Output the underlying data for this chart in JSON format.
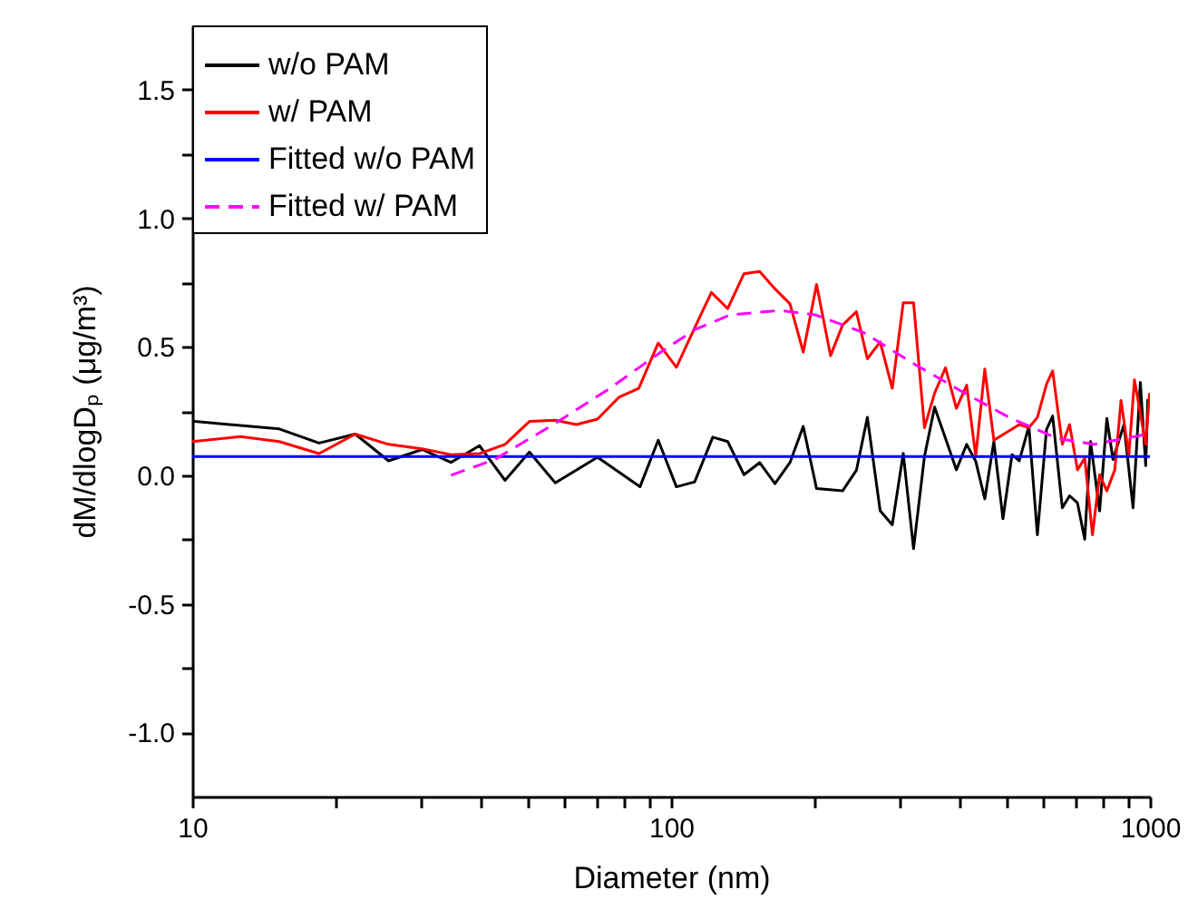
{
  "chart_data": {
    "type": "line",
    "xlabel": "Diameter (nm)",
    "ylabel": "dM/dlogDₚ (μg/m³)",
    "log": "x",
    "xlim": [
      10,
      1000
    ],
    "xticks": [
      10,
      {
        "value": 20,
        "label": null
      },
      {
        "value": 30,
        "label": null
      },
      {
        "value": 40,
        "label": null
      },
      {
        "value": 50,
        "label": null
      },
      {
        "value": 60,
        "label": null
      },
      {
        "value": 70,
        "label": null
      },
      {
        "value": 80,
        "label": null
      },
      {
        "value": 90,
        "label": null
      },
      100,
      {
        "value": 200,
        "label": null
      },
      {
        "value": 300,
        "label": null
      },
      {
        "value": 400,
        "label": null
      },
      {
        "value": 500,
        "label": null
      },
      {
        "value": 600,
        "label": null
      },
      {
        "value": 700,
        "label": null
      },
      {
        "value": 800,
        "label": null
      },
      {
        "value": 900,
        "label": null
      },
      1000
    ],
    "ylim": [
      -1.25,
      1.75
    ],
    "yticks": [
      {
        "value": -1,
        "label": "-1.0"
      },
      {
        "value": -0.75,
        "label": null
      },
      -0.5,
      {
        "value": -0.25,
        "label": null
      },
      {
        "value": 0,
        "label": "0.0"
      },
      {
        "value": 0.25,
        "label": null
      },
      0.5,
      {
        "value": 0.75,
        "label": null
      },
      {
        "value": 1,
        "label": "1.0"
      },
      {
        "value": 1.25,
        "label": null
      },
      1.5
    ],
    "grid": false,
    "legend": "top left",
    "marker": "none",
    "series": [
      {
        "name": "w/o PAM",
        "color": "#000000",
        "line_style": "solid",
        "x": [
          10,
          15.2,
          18.4,
          21.9,
          25.7,
          30.2,
          34.7,
          39.8,
          45,
          50.6,
          57.3,
          70.2,
          86.1,
          94,
          102.6,
          112,
          122.2,
          131.3,
          142,
          153.1,
          164.8,
          177.1,
          188.8,
          201.3,
          228.1,
          243.8,
          257,
          273.3,
          289.7,
          305.4,
          320.9,
          338.2,
          355.1,
          374.2,
          394.3,
          414.3,
          432.8,
          452,
          472.2,
          493.3,
          515.3,
          533.6,
          558.8,
          582.1,
          608.2,
          626.4,
          656.3,
          679.6,
          705.9,
          730.9,
          751.6,
          785.2,
          813,
          837.3,
          882.7,
          922.2,
          955,
          980,
          990
        ],
        "values": [
          0.21,
          0.18,
          0.125,
          0.16,
          0.056,
          0.1,
          0.05,
          0.115,
          -0.02,
          0.09,
          -0.03,
          0.07,
          -0.045,
          0.136,
          -0.045,
          -0.026,
          0.148,
          0.131,
          0.002,
          0.049,
          -0.033,
          0.049,
          0.19,
          -0.052,
          -0.061,
          0.019,
          0.225,
          -0.138,
          -0.193,
          0.085,
          -0.286,
          0.073,
          0.265,
          0.143,
          0.021,
          0.12,
          0.054,
          -0.092,
          0.131,
          -0.169,
          0.08,
          0.056,
          0.19,
          -0.232,
          0.178,
          0.23,
          -0.127,
          -0.08,
          -0.108,
          -0.249,
          0.131,
          -0.139,
          0.221,
          0.061,
          0.197,
          -0.127,
          0.361,
          0.037,
          0.296
        ]
      },
      {
        "name": "w/ PAM",
        "color": "#ff0000",
        "line_style": "solid",
        "x": [
          10,
          12.6,
          15.2,
          18.4,
          21.9,
          25.7,
          30.2,
          34.7,
          39.8,
          45,
          50.6,
          57.3,
          63.4,
          70.2,
          77.8,
          85.6,
          94,
          102.6,
          112,
          121.4,
          131.3,
          142,
          153.1,
          164.8,
          177.1,
          188.8,
          201.3,
          215.3,
          228.1,
          243.8,
          257,
          273.3,
          289.7,
          305.4,
          320.9,
          338.2,
          355.1,
          374.2,
          394.3,
          414.3,
          432.8,
          452,
          472.2,
          533.6,
          558.8,
          582.1,
          608.2,
          626.4,
          656.3,
          679.6,
          705.9,
          730.9,
          758.6,
          785.2,
          813,
          844.7,
          870.3,
          903.6,
          928.4,
          980,
          998
        ],
        "values": [
          0.131,
          0.15,
          0.131,
          0.084,
          0.16,
          0.12,
          0.103,
          0.08,
          0.084,
          0.12,
          0.209,
          0.214,
          0.197,
          0.218,
          0.303,
          0.338,
          0.514,
          0.42,
          0.573,
          0.711,
          0.648,
          0.784,
          0.793,
          0.725,
          0.667,
          0.479,
          0.742,
          0.465,
          0.584,
          0.636,
          0.453,
          0.519,
          0.338,
          0.671,
          0.671,
          0.185,
          0.319,
          0.418,
          0.26,
          0.35,
          0.073,
          0.413,
          0.136,
          0.197,
          0.185,
          0.225,
          0.354,
          0.406,
          0.12,
          0.197,
          0.021,
          0.066,
          -0.232,
          0.002,
          -0.061,
          0.021,
          0.291,
          0.077,
          0.371,
          0.12,
          0.319
        ]
      },
      {
        "name": "Fitted w/o PAM",
        "color": "#0000ff",
        "line_style": "solid",
        "x": [
          10,
          1000
        ],
        "values": [
          0.073,
          0.073
        ]
      },
      {
        "name": "Fitted w/ PAM",
        "color": "#ff00ff",
        "line_style": "dashed",
        "x": [
          34.7,
          42.8,
          57.3,
          74.5,
          94,
          112,
          133,
          168,
          200,
          253,
          319,
          400,
          508,
          641,
          765,
          1000
        ],
        "values": [
          0.0,
          0.061,
          0.202,
          0.338,
          0.472,
          0.566,
          0.624,
          0.641,
          0.624,
          0.554,
          0.437,
          0.331,
          0.225,
          0.143,
          0.12,
          0.162
        ]
      }
    ]
  }
}
